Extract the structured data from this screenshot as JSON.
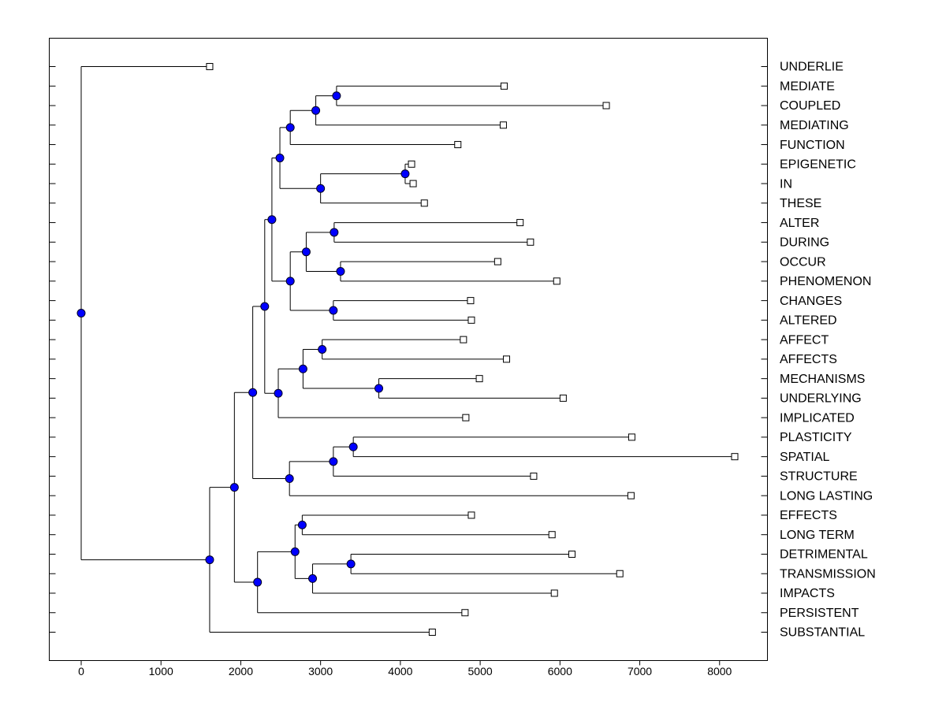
{
  "chart_data": {
    "type": "dendrogram",
    "xlim": [
      -400,
      8600
    ],
    "xticks": [
      0,
      1000,
      2000,
      3000,
      4000,
      5000,
      6000,
      7000,
      8000
    ],
    "node_color": "#0000ff",
    "leaves": [
      {
        "label": "UNDERLIE",
        "value": 1610
      },
      {
        "label": "MEDIATE",
        "value": 5300
      },
      {
        "label": "COUPLED",
        "value": 6580
      },
      {
        "label": "MEDIATING",
        "value": 5290
      },
      {
        "label": "FUNCTION",
        "value": 4720
      },
      {
        "label": "EPIGENETIC",
        "value": 4140
      },
      {
        "label": "IN",
        "value": 4160
      },
      {
        "label": "THESE",
        "value": 4300
      },
      {
        "label": "ALTER",
        "value": 5500
      },
      {
        "label": "DURING",
        "value": 5630
      },
      {
        "label": "OCCUR",
        "value": 5220
      },
      {
        "label": "PHENOMENON",
        "value": 5960
      },
      {
        "label": "CHANGES",
        "value": 4880
      },
      {
        "label": "ALTERED",
        "value": 4890
      },
      {
        "label": "AFFECT",
        "value": 4790
      },
      {
        "label": "AFFECTS",
        "value": 5330
      },
      {
        "label": "MECHANISMS",
        "value": 4990
      },
      {
        "label": "UNDERLYING",
        "value": 6040
      },
      {
        "label": "IMPLICATED",
        "value": 4820
      },
      {
        "label": "PLASTICITY",
        "value": 6900
      },
      {
        "label": "SPATIAL",
        "value": 8190
      },
      {
        "label": "STRUCTURE",
        "value": 5670
      },
      {
        "label": "LONG LASTING",
        "value": 6890
      },
      {
        "label": "EFFECTS",
        "value": 4890
      },
      {
        "label": "LONG TERM",
        "value": 5900
      },
      {
        "label": "DETRIMENTAL",
        "value": 6150
      },
      {
        "label": "TRANSMISSION",
        "value": 6750
      },
      {
        "label": "IMPACTS",
        "value": 5930
      },
      {
        "label": "PERSISTENT",
        "value": 4810
      },
      {
        "label": "SUBSTANTIAL",
        "value": 4400
      }
    ],
    "nodes": [
      {
        "value": 3200,
        "children": [
          {
            "leaf": 1
          },
          {
            "leaf": 2
          }
        ]
      },
      {
        "value": 2940,
        "children": [
          {
            "node": 0
          },
          {
            "leaf": 3
          }
        ]
      },
      {
        "value": 2620,
        "children": [
          {
            "node": 1
          },
          {
            "leaf": 4
          }
        ]
      },
      {
        "value": 4060,
        "children": [
          {
            "leaf": 5
          },
          {
            "leaf": 6
          }
        ]
      },
      {
        "value": 3000,
        "children": [
          {
            "node": 3
          },
          {
            "leaf": 7
          }
        ]
      },
      {
        "value": 2490,
        "children": [
          {
            "node": 2
          },
          {
            "node": 4
          }
        ]
      },
      {
        "value": 3170,
        "children": [
          {
            "leaf": 8
          },
          {
            "leaf": 9
          }
        ]
      },
      {
        "value": 3250,
        "children": [
          {
            "leaf": 10
          },
          {
            "leaf": 11
          }
        ]
      },
      {
        "value": 2820,
        "children": [
          {
            "node": 6
          },
          {
            "node": 7
          }
        ]
      },
      {
        "value": 3160,
        "children": [
          {
            "leaf": 12
          },
          {
            "leaf": 13
          }
        ]
      },
      {
        "value": 2620,
        "children": [
          {
            "node": 8
          },
          {
            "node": 9
          }
        ]
      },
      {
        "value": 2390,
        "children": [
          {
            "node": 5
          },
          {
            "node": 10
          }
        ]
      },
      {
        "value": 3020,
        "children": [
          {
            "leaf": 14
          },
          {
            "leaf": 15
          }
        ]
      },
      {
        "value": 3730,
        "children": [
          {
            "leaf": 16
          },
          {
            "leaf": 17
          }
        ]
      },
      {
        "value": 2780,
        "children": [
          {
            "node": 12
          },
          {
            "node": 13
          }
        ]
      },
      {
        "value": 2470,
        "children": [
          {
            "node": 14
          },
          {
            "leaf": 18
          }
        ]
      },
      {
        "value": 2300,
        "children": [
          {
            "node": 11
          },
          {
            "node": 15
          }
        ]
      },
      {
        "value": 3410,
        "children": [
          {
            "leaf": 19
          },
          {
            "leaf": 20
          }
        ]
      },
      {
        "value": 3160,
        "children": [
          {
            "node": 17
          },
          {
            "leaf": 21
          }
        ]
      },
      {
        "value": 2610,
        "children": [
          {
            "node": 18
          },
          {
            "leaf": 22
          }
        ]
      },
      {
        "value": 2150,
        "children": [
          {
            "node": 16
          },
          {
            "node": 19
          }
        ]
      },
      {
        "value": 2770,
        "children": [
          {
            "leaf": 23
          },
          {
            "leaf": 24
          }
        ]
      },
      {
        "value": 3380,
        "children": [
          {
            "leaf": 25
          },
          {
            "leaf": 26
          }
        ]
      },
      {
        "value": 2900,
        "children": [
          {
            "node": 22
          },
          {
            "leaf": 27
          }
        ]
      },
      {
        "value": 2680,
        "children": [
          {
            "node": 21
          },
          {
            "node": 23
          }
        ]
      },
      {
        "value": 2210,
        "children": [
          {
            "node": 24
          },
          {
            "leaf": 28
          }
        ]
      },
      {
        "value": 1920,
        "children": [
          {
            "node": 20
          },
          {
            "node": 25
          }
        ]
      },
      {
        "value": 1610,
        "children": [
          {
            "node": 26
          },
          {
            "leaf": 29
          }
        ]
      },
      {
        "value": 0,
        "children": [
          {
            "leaf": 0
          },
          {
            "node": 27
          }
        ]
      }
    ]
  }
}
